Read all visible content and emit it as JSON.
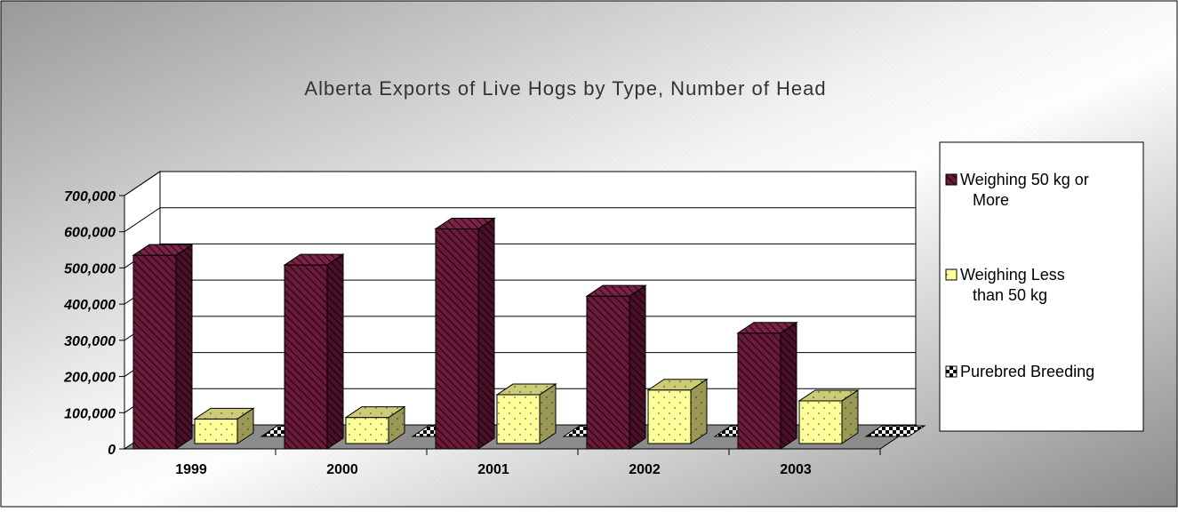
{
  "chart_data": {
    "type": "bar",
    "title": "Alberta Exports of Live Hogs by Type, Number of Head",
    "categories": [
      "1999",
      "2000",
      "2001",
      "2002",
      "2003"
    ],
    "series": [
      {
        "name": "Weighing 50 kg or More",
        "values": [
          535000,
          508000,
          608000,
          422000,
          320000
        ],
        "color": "#6b1a3a"
      },
      {
        "name": "Weighing Less than 50 kg",
        "values": [
          68000,
          72000,
          135000,
          148000,
          118000
        ],
        "color": "#ffff99"
      },
      {
        "name": "Purebred Breeding",
        "values": [
          0,
          0,
          0,
          0,
          0
        ],
        "color": "#000000"
      }
    ],
    "ylim": [
      0,
      700000
    ],
    "yticks": [
      "0",
      "100,000",
      "200,000",
      "300,000",
      "400,000",
      "500,000",
      "600,000",
      "700,000"
    ],
    "grid": true,
    "legend_position": "right",
    "style": "3d-column"
  }
}
